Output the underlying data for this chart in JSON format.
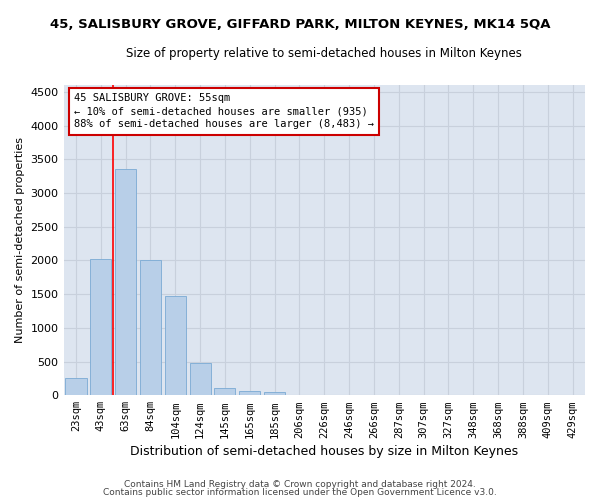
{
  "title": "45, SALISBURY GROVE, GIFFARD PARK, MILTON KEYNES, MK14 5QA",
  "subtitle": "Size of property relative to semi-detached houses in Milton Keynes",
  "xlabel": "Distribution of semi-detached houses by size in Milton Keynes",
  "ylabel": "Number of semi-detached properties",
  "footer1": "Contains HM Land Registry data © Crown copyright and database right 2024.",
  "footer2": "Contains public sector information licensed under the Open Government Licence v3.0.",
  "categories": [
    "23sqm",
    "43sqm",
    "63sqm",
    "84sqm",
    "104sqm",
    "124sqm",
    "145sqm",
    "165sqm",
    "185sqm",
    "206sqm",
    "226sqm",
    "246sqm",
    "266sqm",
    "287sqm",
    "307sqm",
    "327sqm",
    "348sqm",
    "368sqm",
    "388sqm",
    "409sqm",
    "429sqm"
  ],
  "values": [
    250,
    2020,
    3360,
    2010,
    1465,
    480,
    105,
    60,
    45,
    0,
    0,
    0,
    0,
    0,
    0,
    0,
    0,
    0,
    0,
    0,
    0
  ],
  "bar_color": "#b8cfe8",
  "bar_edge_color": "#7aaad4",
  "grid_color": "#c8d0dc",
  "background_color": "#dde5f0",
  "red_line_x": 1.5,
  "annotation_line1": "45 SALISBURY GROVE: 55sqm",
  "annotation_line2": "← 10% of semi-detached houses are smaller (935)",
  "annotation_line3": "88% of semi-detached houses are larger (8,483) →",
  "annotation_box_edgecolor": "#cc0000",
  "ylim": [
    0,
    4600
  ],
  "yticks": [
    0,
    500,
    1000,
    1500,
    2000,
    2500,
    3000,
    3500,
    4000,
    4500
  ],
  "title_fontsize": 9.5,
  "subtitle_fontsize": 8.5,
  "ylabel_fontsize": 8,
  "xlabel_fontsize": 9,
  "tick_fontsize": 8,
  "xtick_fontsize": 7.5,
  "footer_fontsize": 6.5,
  "ann_fontsize": 7.5
}
